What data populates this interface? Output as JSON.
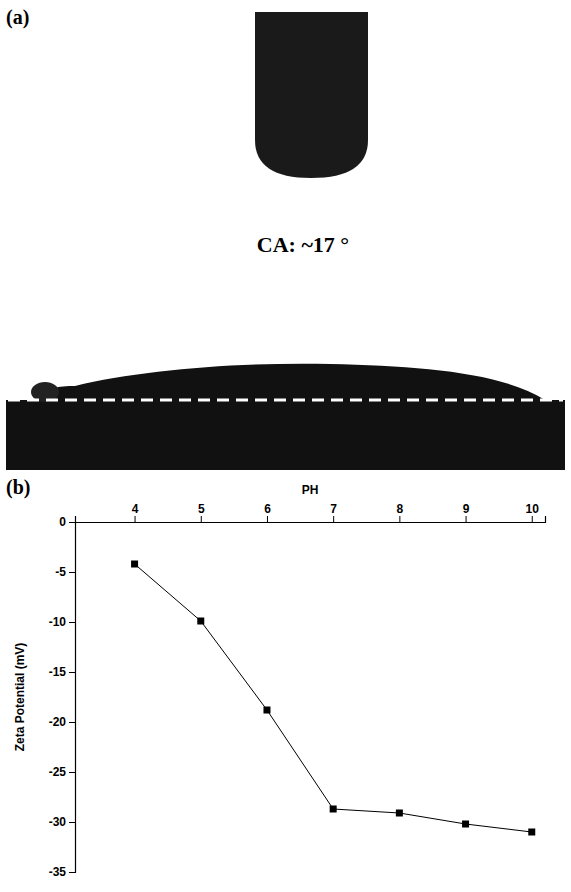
{
  "chart_data": [
    {
      "type": "image",
      "panel_label": "(a)",
      "annotation": "CA: ~17 °"
    },
    {
      "type": "line",
      "panel_label": "(b)",
      "x_label": "PH",
      "y_label": "Zeta Potential (mV)",
      "x": [
        4,
        5,
        6,
        7,
        8,
        9,
        10
      ],
      "values": [
        -4.2,
        -9.9,
        -18.8,
        -28.7,
        -29.1,
        -30.2,
        -31.0
      ],
      "color": "#000000",
      "marker": "square",
      "line_style": "solid",
      "xlim": [
        3.1,
        10.2
      ],
      "xticks": [
        4,
        5,
        6,
        7,
        8,
        9,
        10
      ],
      "ylim": [
        -35,
        0
      ],
      "yticks": [
        0,
        -5,
        -10,
        -15,
        -20,
        -25,
        -30,
        -35
      ]
    }
  ]
}
